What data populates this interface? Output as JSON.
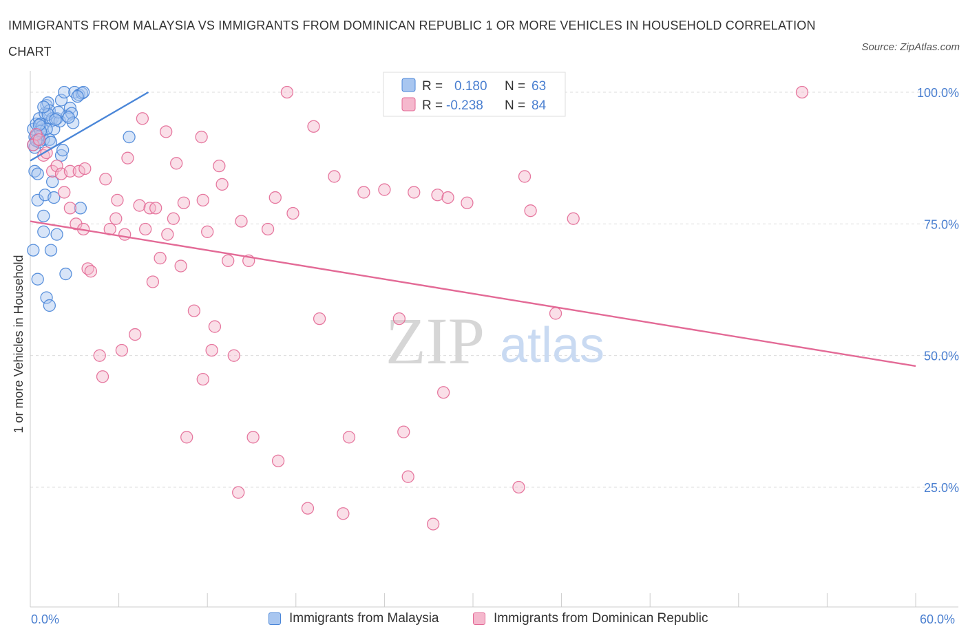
{
  "title": "IMMIGRANTS FROM MALAYSIA VS IMMIGRANTS FROM DOMINICAN REPUBLIC 1 OR MORE VEHICLES IN HOUSEHOLD CORRELATION CHART",
  "title_lines": [
    "IMMIGRANTS FROM MALAYSIA VS IMMIGRANTS FROM DOMINICAN REPUBLIC 1 OR MORE VEHICLES IN HOUSEHOLD CORRELATION",
    "CHART"
  ],
  "source": "Source: ZipAtlas.com",
  "watermark": {
    "zip": "ZIP",
    "atlas": "atlas"
  },
  "colors": {
    "blue": "#4a86d8",
    "blue_fill": "#a8c6f0",
    "pink": "#e36a96",
    "pink_fill": "#f5b8cd",
    "axis_text": "#4a7fd0",
    "grid": "#dcdcdc"
  },
  "legend_top": [
    {
      "r_label": "R =",
      "r_value": "0.180",
      "n_label": "N =",
      "n_value": "63"
    },
    {
      "r_label": "R =",
      "r_value": "-0.238",
      "n_label": "N =",
      "n_value": "84"
    }
  ],
  "chart_data": {
    "type": "scatter",
    "title": "IMMIGRANTS FROM MALAYSIA VS IMMIGRANTS FROM DOMINICAN REPUBLIC 1 OR MORE VEHICLES IN HOUSEHOLD CORRELATION CHART",
    "xlabel": "",
    "ylabel": "1 or more Vehicles in Household",
    "xlim": [
      0,
      60
    ],
    "ylim": [
      0,
      102
    ],
    "x_tick_labels": [
      "0.0%",
      "60.0%"
    ],
    "y_ticks": [
      25,
      50,
      75,
      100
    ],
    "y_tick_labels": [
      "25.0%",
      "50.0%",
      "75.0%",
      "100.0%"
    ],
    "grid": true,
    "legend_position": "bottom",
    "series": [
      {
        "name": "Immigrants from Malaysia",
        "color": "#4a86d8",
        "R": 0.18,
        "N": 63,
        "trend": {
          "x": [
            0.0,
            8.0
          ],
          "y": [
            87.0,
            100.0
          ]
        },
        "points": [
          [
            0.2,
            93.0
          ],
          [
            0.3,
            91.5
          ],
          [
            0.4,
            94.0
          ],
          [
            0.5,
            92.0
          ],
          [
            0.6,
            95.0
          ],
          [
            0.7,
            94.0
          ],
          [
            0.8,
            93.5
          ],
          [
            0.9,
            91.0
          ],
          [
            1.0,
            96.0
          ],
          [
            1.1,
            97.5
          ],
          [
            1.2,
            98.0
          ],
          [
            1.3,
            96.5
          ],
          [
            1.4,
            94.5
          ],
          [
            1.5,
            95.0
          ],
          [
            1.6,
            93.0
          ],
          [
            1.8,
            95.0
          ],
          [
            2.0,
            94.5
          ],
          [
            2.1,
            98.5
          ],
          [
            2.3,
            100.0
          ],
          [
            2.5,
            95.5
          ],
          [
            2.7,
            97.0
          ],
          [
            2.8,
            96.0
          ],
          [
            3.0,
            100.0
          ],
          [
            3.3,
            99.5
          ],
          [
            3.5,
            99.8
          ],
          [
            3.6,
            100.0
          ],
          [
            0.2,
            90.0
          ],
          [
            0.3,
            89.5
          ],
          [
            0.5,
            91.0
          ],
          [
            0.6,
            90.5
          ],
          [
            0.8,
            92.0
          ],
          [
            1.1,
            93.0
          ],
          [
            1.3,
            91.0
          ],
          [
            1.4,
            90.5
          ],
          [
            2.1,
            88.0
          ],
          [
            2.2,
            89.0
          ],
          [
            0.3,
            85.0
          ],
          [
            0.5,
            84.5
          ],
          [
            1.5,
            83.0
          ],
          [
            0.5,
            79.5
          ],
          [
            1.0,
            80.5
          ],
          [
            1.6,
            80.0
          ],
          [
            0.9,
            76.5
          ],
          [
            3.4,
            78.0
          ],
          [
            0.9,
            73.5
          ],
          [
            1.8,
            73.0
          ],
          [
            0.2,
            70.0
          ],
          [
            1.4,
            70.0
          ],
          [
            0.5,
            64.5
          ],
          [
            2.4,
            65.5
          ],
          [
            1.1,
            61.0
          ],
          [
            1.3,
            59.5
          ],
          [
            6.7,
            91.5
          ],
          [
            0.4,
            90.8
          ],
          [
            0.7,
            92.6
          ],
          [
            1.9,
            96.2
          ],
          [
            2.9,
            94.2
          ],
          [
            0.6,
            93.8
          ],
          [
            1.2,
            95.8
          ],
          [
            2.6,
            95.2
          ],
          [
            3.2,
            99.2
          ],
          [
            0.9,
            97.2
          ],
          [
            1.7,
            94.8
          ]
        ]
      },
      {
        "name": "Immigrants from Dominican Republic",
        "color": "#e36a96",
        "R": -0.238,
        "N": 84,
        "trend": {
          "x": [
            0.0,
            60.0
          ],
          "y": [
            75.5,
            48.0
          ]
        },
        "points": [
          [
            0.2,
            90.0
          ],
          [
            0.4,
            92.0
          ],
          [
            0.6,
            91.0
          ],
          [
            0.9,
            88.0
          ],
          [
            1.1,
            88.5
          ],
          [
            1.5,
            85.0
          ],
          [
            1.8,
            86.0
          ],
          [
            2.1,
            84.5
          ],
          [
            2.3,
            81.0
          ],
          [
            2.7,
            85.0
          ],
          [
            3.3,
            85.0
          ],
          [
            3.7,
            85.5
          ],
          [
            2.7,
            78.0
          ],
          [
            3.1,
            75.0
          ],
          [
            3.6,
            74.0
          ],
          [
            3.9,
            66.5
          ],
          [
            4.1,
            66.0
          ],
          [
            4.7,
            50.0
          ],
          [
            4.9,
            46.0
          ],
          [
            5.1,
            83.5
          ],
          [
            5.4,
            74.0
          ],
          [
            5.8,
            76.0
          ],
          [
            5.9,
            79.5
          ],
          [
            6.2,
            51.0
          ],
          [
            6.4,
            73.0
          ],
          [
            6.6,
            87.5
          ],
          [
            7.1,
            54.0
          ],
          [
            7.4,
            78.5
          ],
          [
            7.6,
            95.0
          ],
          [
            7.8,
            74.0
          ],
          [
            8.1,
            78.0
          ],
          [
            8.3,
            64.0
          ],
          [
            8.5,
            78.0
          ],
          [
            8.8,
            68.5
          ],
          [
            9.2,
            92.5
          ],
          [
            9.3,
            73.0
          ],
          [
            9.7,
            76.0
          ],
          [
            9.9,
            86.5
          ],
          [
            10.2,
            67.0
          ],
          [
            10.4,
            79.0
          ],
          [
            10.6,
            34.5
          ],
          [
            11.1,
            58.5
          ],
          [
            11.7,
            45.5
          ],
          [
            11.6,
            91.5
          ],
          [
            11.7,
            79.5
          ],
          [
            12.0,
            73.5
          ],
          [
            12.3,
            51.0
          ],
          [
            12.5,
            55.5
          ],
          [
            12.8,
            86.0
          ],
          [
            13.0,
            82.5
          ],
          [
            13.4,
            68.0
          ],
          [
            13.8,
            50.0
          ],
          [
            14.1,
            24.0
          ],
          [
            14.3,
            75.5
          ],
          [
            14.8,
            68.0
          ],
          [
            15.1,
            34.5
          ],
          [
            16.1,
            74.0
          ],
          [
            16.6,
            80.0
          ],
          [
            16.8,
            30.0
          ],
          [
            17.4,
            100.0
          ],
          [
            17.8,
            77.0
          ],
          [
            18.8,
            21.0
          ],
          [
            19.2,
            93.5
          ],
          [
            19.6,
            57.0
          ],
          [
            20.6,
            84.0
          ],
          [
            21.2,
            20.0
          ],
          [
            21.6,
            34.5
          ],
          [
            22.6,
            81.0
          ],
          [
            24.0,
            81.5
          ],
          [
            25.0,
            57.0
          ],
          [
            25.3,
            35.5
          ],
          [
            25.6,
            27.0
          ],
          [
            26.0,
            81.0
          ],
          [
            27.3,
            18.0
          ],
          [
            28.0,
            43.0
          ],
          [
            27.6,
            80.5
          ],
          [
            28.3,
            80.0
          ],
          [
            29.6,
            79.0
          ],
          [
            33.1,
            25.0
          ],
          [
            33.5,
            84.0
          ],
          [
            33.9,
            77.5
          ],
          [
            35.6,
            58.0
          ],
          [
            36.8,
            76.0
          ],
          [
            52.3,
            100.0
          ]
        ]
      }
    ]
  },
  "legend_bottom": [
    "Immigrants from Malaysia",
    "Immigrants from Dominican Republic"
  ]
}
